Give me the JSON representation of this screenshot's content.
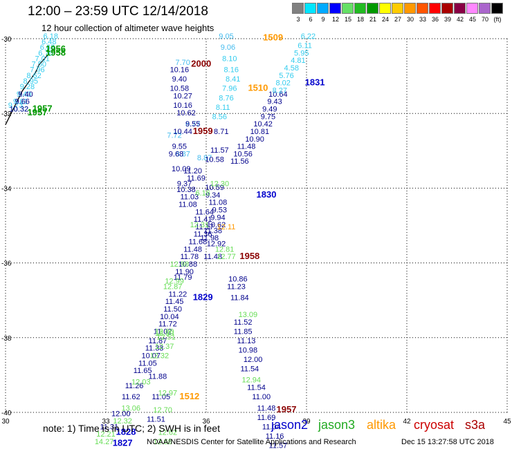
{
  "header": {
    "title": "12:00 – 23:59 UTC 12/14/2018",
    "subtitle": "12 hour collection of altimeter wave heights"
  },
  "colorbar": {
    "labels": [
      "3",
      "6",
      "9",
      "12",
      "15",
      "18",
      "21",
      "24",
      "27",
      "30",
      "33",
      "36",
      "39",
      "42",
      "45",
      "70",
      "(ft)"
    ],
    "colors": [
      "#808080",
      "#00e5ff",
      "#00aaff",
      "#0000ff",
      "#66e066",
      "#22bb22",
      "#009900",
      "#ffff00",
      "#ffcc00",
      "#ff9900",
      "#ff5500",
      "#ff0000",
      "#aa0000",
      "#880044",
      "#ff88ff",
      "#aa66cc",
      "#000000"
    ]
  },
  "note": "note:  1) Time is in UTC;  2) SWH is in feet",
  "satellites": [
    {
      "name": "jason2",
      "color": "#0000cc"
    },
    {
      "name": "jason3",
      "color": "#22aa22"
    },
    {
      "name": "altika",
      "color": "#ff9900"
    },
    {
      "name": "cryosat",
      "color": "#cc0000"
    },
    {
      "name": "s3a",
      "color": "#aa0000"
    }
  ],
  "footer": {
    "source": "NOAA/NESDIS Center for Satellite Applications and Research",
    "timestamp": "Dec 15 13:27:58 UTC 2018"
  },
  "chart_data": {
    "type": "scatter",
    "title": "12:00 – 23:59 UTC 12/14/2018",
    "xlabel": "",
    "ylabel": "",
    "xlim": [
      30,
      45
    ],
    "ylim": [
      -40,
      -30
    ],
    "x_ticks": [
      30,
      33,
      36,
      39,
      42,
      45
    ],
    "y_ticks": [
      -30,
      -32,
      -34,
      -36,
      -38,
      -40
    ],
    "grid": true,
    "coastline": [
      [
        30.0,
        -32.3
      ],
      [
        30.5,
        -31.4
      ],
      [
        30.9,
        -30.9
      ],
      [
        31.0,
        -30.7
      ],
      [
        31.3,
        -30.4
      ]
    ],
    "series": [
      {
        "color": "#33ccee",
        "points": [
          [
            31.35,
            -30.0,
            "6.18"
          ],
          [
            31.3,
            -30.15,
            "6.48"
          ],
          [
            31.25,
            -30.3,
            "6.63"
          ],
          [
            31.2,
            -30.45,
            "6.76"
          ],
          [
            31.1,
            -30.6,
            "7.01"
          ],
          [
            31.0,
            -30.75,
            "7.50"
          ],
          [
            30.95,
            -30.9,
            "7.96"
          ],
          [
            30.85,
            -31.05,
            "8.62"
          ],
          [
            30.75,
            -31.2,
            "8.95"
          ],
          [
            30.65,
            -31.35,
            "9.28"
          ],
          [
            30.55,
            -31.55,
            "9.40"
          ],
          [
            30.45,
            -31.75,
            "9.61"
          ],
          [
            30.4,
            -31.95,
            "10.32"
          ],
          [
            30.3,
            -31.85,
            "9.73"
          ]
        ]
      },
      {
        "color": "#00008b",
        "points": [
          [
            30.6,
            -31.55,
            "9.40"
          ],
          [
            30.5,
            -31.75,
            "9.66"
          ],
          [
            30.4,
            -31.95,
            "10.32"
          ]
        ]
      },
      {
        "color": "#44bbee",
        "points": [
          [
            35.3,
            -30.7,
            "7.70"
          ],
          [
            35.05,
            -32.65,
            "7.72"
          ],
          [
            35.3,
            -33.15,
            "8.87"
          ],
          [
            35.6,
            -32.35,
            "8.77"
          ],
          [
            35.95,
            -33.25,
            "8.87"
          ],
          [
            36.6,
            -30.0,
            "9.05"
          ],
          [
            36.65,
            -30.3,
            "9.06"
          ]
        ]
      },
      {
        "color": "#00008b",
        "points": [
          [
            35.2,
            -30.9,
            "10.16"
          ],
          [
            35.2,
            -31.15,
            "9.40"
          ],
          [
            35.2,
            -31.4,
            "10.58"
          ],
          [
            35.3,
            -31.6,
            "10.27"
          ],
          [
            35.3,
            -31.85,
            "10.16"
          ],
          [
            35.4,
            -32.05,
            "10.62"
          ],
          [
            35.6,
            -32.35,
            "9.55"
          ],
          [
            35.3,
            -32.55,
            "10.44"
          ],
          [
            35.2,
            -32.95,
            "9.55"
          ],
          [
            35.1,
            -33.15,
            "9.68"
          ],
          [
            35.25,
            -33.55,
            "10.09"
          ],
          [
            35.6,
            -33.6,
            "11.20"
          ],
          [
            35.7,
            -33.8,
            "11.69"
          ],
          [
            35.35,
            -33.95,
            "9.37"
          ],
          [
            35.4,
            -34.1,
            "10.38"
          ],
          [
            35.5,
            -34.3,
            "11.03"
          ],
          [
            35.45,
            -34.5,
            "11.08"
          ]
        ]
      },
      {
        "color": "#33ccee",
        "points": [
          [
            36.7,
            -30.6,
            "8.10"
          ],
          [
            36.75,
            -30.9,
            "8.16"
          ],
          [
            36.8,
            -31.15,
            "8.41"
          ],
          [
            36.7,
            -31.4,
            "7.96"
          ],
          [
            36.6,
            -31.65,
            "8.76"
          ],
          [
            36.5,
            -31.9,
            "8.11"
          ],
          [
            36.4,
            -32.15,
            "8.56"
          ]
        ]
      },
      {
        "color": "#00008b",
        "points": [
          [
            36.45,
            -32.55,
            "8.71"
          ],
          [
            36.4,
            -33.05,
            "11.57"
          ],
          [
            36.25,
            -33.3,
            "10.58"
          ],
          [
            36.25,
            -34.05,
            "10.59"
          ],
          [
            36.2,
            -34.25,
            "9.34"
          ],
          [
            37.0,
            -33.35,
            "11.56"
          ],
          [
            37.1,
            -33.15,
            "10.56"
          ],
          [
            37.2,
            -32.95,
            "11.48"
          ],
          [
            37.45,
            -32.75,
            "10.90"
          ],
          [
            37.6,
            -32.55,
            "10.81"
          ],
          [
            37.7,
            -32.35,
            "10.42"
          ],
          [
            37.85,
            -32.15,
            "9.75"
          ],
          [
            37.9,
            -31.95,
            "9.49"
          ],
          [
            38.05,
            -31.75,
            "9.43"
          ],
          [
            38.15,
            -31.55,
            "10.64"
          ]
        ]
      },
      {
        "color": "#33ccee",
        "points": [
          [
            39.05,
            -30.0,
            "6.22"
          ],
          [
            38.95,
            -30.25,
            "6.11"
          ],
          [
            38.85,
            -30.45,
            "5.95"
          ],
          [
            38.75,
            -30.65,
            "4.81"
          ],
          [
            38.55,
            -30.85,
            "4.58"
          ],
          [
            38.4,
            -31.05,
            "5.76"
          ],
          [
            38.3,
            -31.25,
            "8.02"
          ],
          [
            38.2,
            -31.45,
            "8.27"
          ]
        ]
      },
      {
        "color": "#00008b",
        "points": [
          [
            35.95,
            -34.7,
            "11.64"
          ],
          [
            35.9,
            -34.9,
            "11.41"
          ],
          [
            35.95,
            -35.1,
            "11.17"
          ],
          [
            35.9,
            -35.3,
            "11.36"
          ],
          [
            35.75,
            -35.5,
            "11.68"
          ],
          [
            35.6,
            -35.7,
            "11.48"
          ],
          [
            35.5,
            -35.9,
            "11.78"
          ],
          [
            35.45,
            -36.1,
            "10.88"
          ],
          [
            35.35,
            -36.3,
            "11.90"
          ],
          [
            35.3,
            -36.45,
            "11.79"
          ],
          [
            35.15,
            -36.9,
            "11.22"
          ],
          [
            35.05,
            -37.1,
            "11.45"
          ],
          [
            35.0,
            -37.3,
            "11.50"
          ],
          [
            34.9,
            -37.5,
            "10.04"
          ],
          [
            34.85,
            -37.7,
            "11.72"
          ],
          [
            34.7,
            -37.9,
            "11.02"
          ],
          [
            34.55,
            -38.15,
            "11.87"
          ],
          [
            34.45,
            -38.35,
            "11.33"
          ],
          [
            34.35,
            -38.55,
            "10.07"
          ],
          [
            34.25,
            -38.75,
            "11.05"
          ],
          [
            34.1,
            -38.95,
            "11.65"
          ],
          [
            34.55,
            -39.1,
            "11.88"
          ],
          [
            33.85,
            -39.35,
            "11.26"
          ],
          [
            33.75,
            -39.65,
            "11.62"
          ],
          [
            34.65,
            -39.65,
            "11.05"
          ],
          [
            33.45,
            -40.1,
            "12.00"
          ],
          [
            34.5,
            -40.25,
            "11.51"
          ],
          [
            33.1,
            -40.45,
            "11.31"
          ]
        ]
      },
      {
        "color": "#00008b",
        "points": [
          [
            36.35,
            -34.45,
            "11.08"
          ],
          [
            36.4,
            -34.65,
            "9.53"
          ],
          [
            36.35,
            -34.85,
            "9.94"
          ],
          [
            36.3,
            -35.05,
            "10.62"
          ],
          [
            36.2,
            -35.2,
            "11.38"
          ],
          [
            36.1,
            -35.4,
            "11.98"
          ],
          [
            36.3,
            -35.55,
            "12.92"
          ],
          [
            36.2,
            -35.9,
            "11.48"
          ],
          [
            36.95,
            -36.5,
            "10.86"
          ],
          [
            36.9,
            -36.7,
            "11.23"
          ],
          [
            37.0,
            -37.0,
            "11.84"
          ],
          [
            37.1,
            -37.65,
            "11.52"
          ],
          [
            37.1,
            -37.9,
            "11.85"
          ],
          [
            37.2,
            -38.15,
            "11.13"
          ],
          [
            37.25,
            -38.4,
            "10.98"
          ],
          [
            37.4,
            -38.65,
            "12.00"
          ],
          [
            37.3,
            -38.9,
            "11.54"
          ],
          [
            37.5,
            -39.4,
            "11.54"
          ],
          [
            37.65,
            -39.65,
            "11.00"
          ],
          [
            37.8,
            -39.95,
            "11.48"
          ],
          [
            37.8,
            -40.2,
            "11.69"
          ],
          [
            37.95,
            -40.45,
            "11.04"
          ],
          [
            38.05,
            -40.7,
            "11.16"
          ],
          [
            38.15,
            -40.95,
            "11.57"
          ]
        ]
      },
      {
        "color": "#66dd55",
        "points": [
          [
            36.4,
            -33.95,
            "12.30"
          ],
          [
            35.9,
            -34.2,
            "6.16"
          ],
          [
            35.8,
            -35.05,
            "12.31"
          ],
          [
            36.55,
            -35.7,
            "12.81"
          ],
          [
            36.6,
            -35.9,
            "12.77"
          ],
          [
            35.2,
            -36.1,
            "12.98"
          ],
          [
            35.0,
            -36.7,
            "12.87"
          ],
          [
            35.05,
            -36.55,
            "12.99"
          ],
          [
            37.25,
            -37.45,
            "13.09"
          ],
          [
            34.8,
            -38.05,
            "12.51"
          ],
          [
            34.75,
            -37.9,
            "12.00"
          ],
          [
            34.75,
            -38.3,
            "12.37"
          ],
          [
            34.6,
            -38.55,
            "12.32"
          ],
          [
            37.35,
            -39.2,
            "12.94"
          ],
          [
            34.05,
            -39.25,
            "12.03"
          ],
          [
            34.85,
            -39.55,
            "12.97"
          ],
          [
            34.7,
            -40.0,
            "12.70"
          ],
          [
            33.75,
            -39.95,
            "13.06"
          ],
          [
            33.5,
            -40.3,
            "12.32"
          ],
          [
            33.0,
            -40.65,
            "12.21"
          ],
          [
            32.95,
            -40.85,
            "14.27"
          ],
          [
            34.7,
            -40.85,
            "12.68"
          ],
          [
            34.85,
            -40.6,
            "12.62"
          ],
          [
            34.75,
            -37.95,
            "12.39"
          ]
        ]
      },
      {
        "color": "#ff9900",
        "points": [
          [
            36.6,
            -35.1,
            "12.11"
          ]
        ]
      }
    ],
    "time_labels": [
      {
        "x": 31.5,
        "y": -30.35,
        "text": "1956",
        "color": "#009900"
      },
      {
        "x": 31.5,
        "y": -30.45,
        "text": "1958",
        "color": "#009900"
      },
      {
        "x": 31.1,
        "y": -31.95,
        "text": "1957",
        "color": "#009900"
      },
      {
        "x": 30.95,
        "y": -32.05,
        "text": "1957",
        "color": "#009900"
      },
      {
        "x": 35.85,
        "y": -30.75,
        "text": "2000",
        "color": "#8b0000"
      },
      {
        "x": 35.9,
        "y": -32.55,
        "text": "1959",
        "color": "#8b0000"
      },
      {
        "x": 38.0,
        "y": -30.05,
        "text": "1509",
        "color": "#ff9900"
      },
      {
        "x": 37.55,
        "y": -31.4,
        "text": "1510",
        "color": "#ff9900"
      },
      {
        "x": 39.25,
        "y": -31.25,
        "text": "1831",
        "color": "#0000cc"
      },
      {
        "x": 37.8,
        "y": -34.25,
        "text": "1830",
        "color": "#0000cc"
      },
      {
        "x": 37.3,
        "y": -35.9,
        "text": "1958",
        "color": "#8b0000"
      },
      {
        "x": 35.9,
        "y": -37.0,
        "text": "1829",
        "color": "#0000cc"
      },
      {
        "x": 35.5,
        "y": -39.65,
        "text": "1512",
        "color": "#ff9900"
      },
      {
        "x": 38.4,
        "y": -40.0,
        "text": "1957",
        "color": "#8b0000"
      },
      {
        "x": 33.6,
        "y": -40.6,
        "text": "1828",
        "color": "#0000cc"
      },
      {
        "x": 33.5,
        "y": -40.9,
        "text": "1827",
        "color": "#0000cc"
      }
    ]
  }
}
